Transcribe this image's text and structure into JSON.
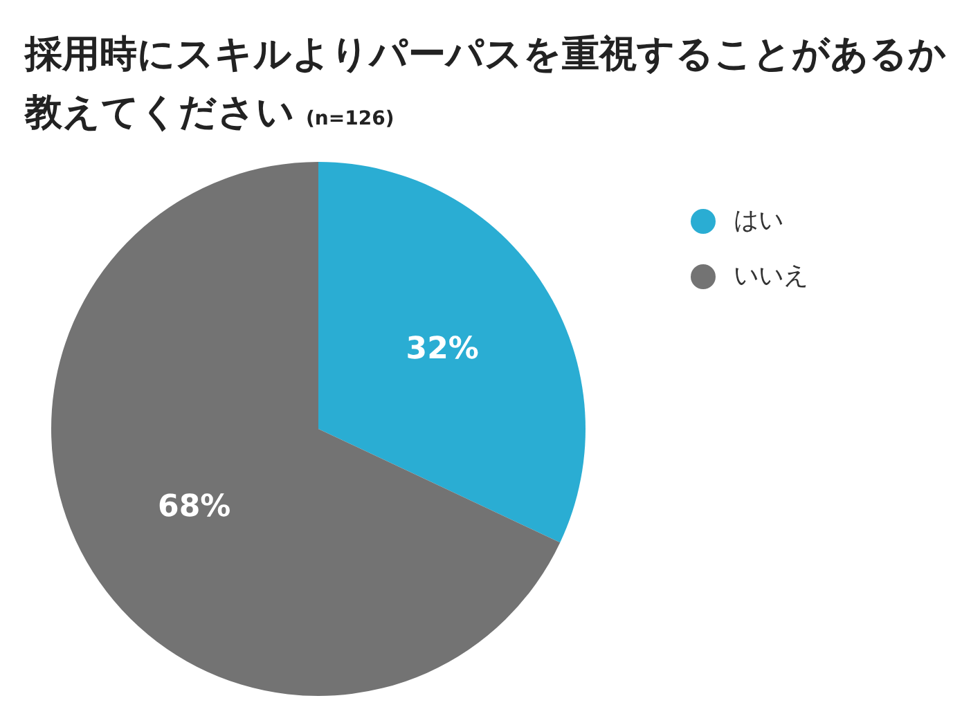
{
  "chart_data": {
    "type": "pie",
    "title": "採用時にスキルよりパーパスを重視することがあるか教えてください",
    "subtitle": "(n=126)",
    "categories": [
      "はい",
      "いいえ"
    ],
    "values": [
      32,
      68
    ],
    "colors": [
      "#2aadd3",
      "#737373"
    ],
    "value_labels": [
      "32%",
      "68%"
    ],
    "legend": "top right"
  }
}
